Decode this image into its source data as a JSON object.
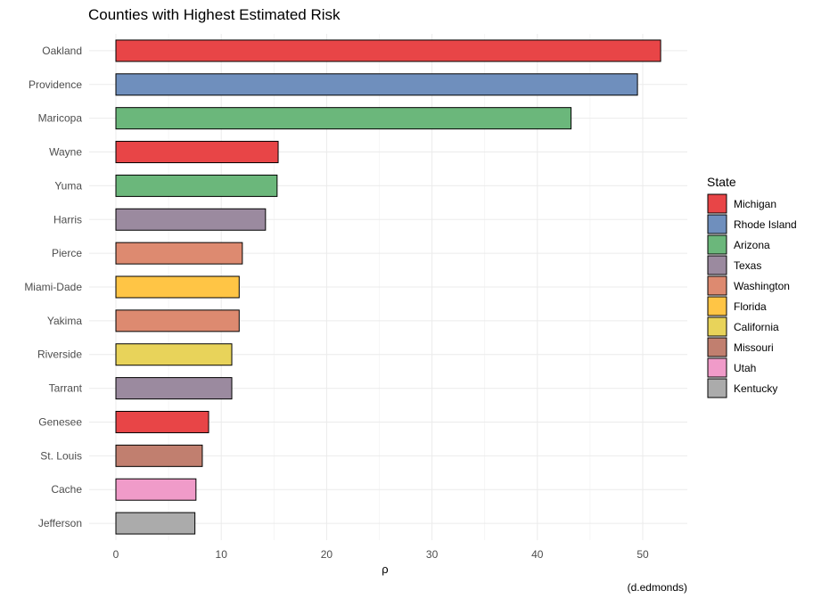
{
  "chart_data": {
    "type": "bar",
    "orientation": "horizontal",
    "title": "Counties with Highest Estimated Risk",
    "xlabel": "ρ",
    "ylabel": "",
    "caption": "(d.edmonds)",
    "xlim": [
      0,
      54.5
    ],
    "xticks": [
      0,
      10,
      20,
      30,
      40,
      50
    ],
    "grid": true,
    "legend": {
      "title": "State",
      "position": "right"
    },
    "bars": [
      {
        "county": "Oakland",
        "state": "Michigan",
        "value": 51.7
      },
      {
        "county": "Providence",
        "state": "Rhode Island",
        "value": 49.5
      },
      {
        "county": "Maricopa",
        "state": "Arizona",
        "value": 43.2
      },
      {
        "county": "Wayne",
        "state": "Michigan",
        "value": 15.4
      },
      {
        "county": "Yuma",
        "state": "Arizona",
        "value": 15.3
      },
      {
        "county": "Harris",
        "state": "Texas",
        "value": 14.2
      },
      {
        "county": "Pierce",
        "state": "Washington",
        "value": 12.0
      },
      {
        "county": "Miami-Dade",
        "state": "Florida",
        "value": 11.7
      },
      {
        "county": "Yakima",
        "state": "Washington",
        "value": 11.7
      },
      {
        "county": "Riverside",
        "state": "California",
        "value": 11.0
      },
      {
        "county": "Tarrant",
        "state": "Texas",
        "value": 11.0
      },
      {
        "county": "Genesee",
        "state": "Michigan",
        "value": 8.8
      },
      {
        "county": "St. Louis",
        "state": "Missouri",
        "value": 8.2
      },
      {
        "county": "Cache",
        "state": "Utah",
        "value": 7.6
      },
      {
        "county": "Jefferson",
        "state": "Kentucky",
        "value": 7.5
      }
    ],
    "states": [
      {
        "name": "Michigan",
        "color": "#E84547"
      },
      {
        "name": "Rhode Island",
        "color": "#6F8FBD"
      },
      {
        "name": "Arizona",
        "color": "#6BB77B"
      },
      {
        "name": "Texas",
        "color": "#9B8A9F"
      },
      {
        "name": "Washington",
        "color": "#DD8A70"
      },
      {
        "name": "Florida",
        "color": "#FFC545"
      },
      {
        "name": "California",
        "color": "#E8D35A"
      },
      {
        "name": "Missouri",
        "color": "#C17F6F"
      },
      {
        "name": "Utah",
        "color": "#F09BC9"
      },
      {
        "name": "Kentucky",
        "color": "#ABABAB"
      }
    ]
  }
}
